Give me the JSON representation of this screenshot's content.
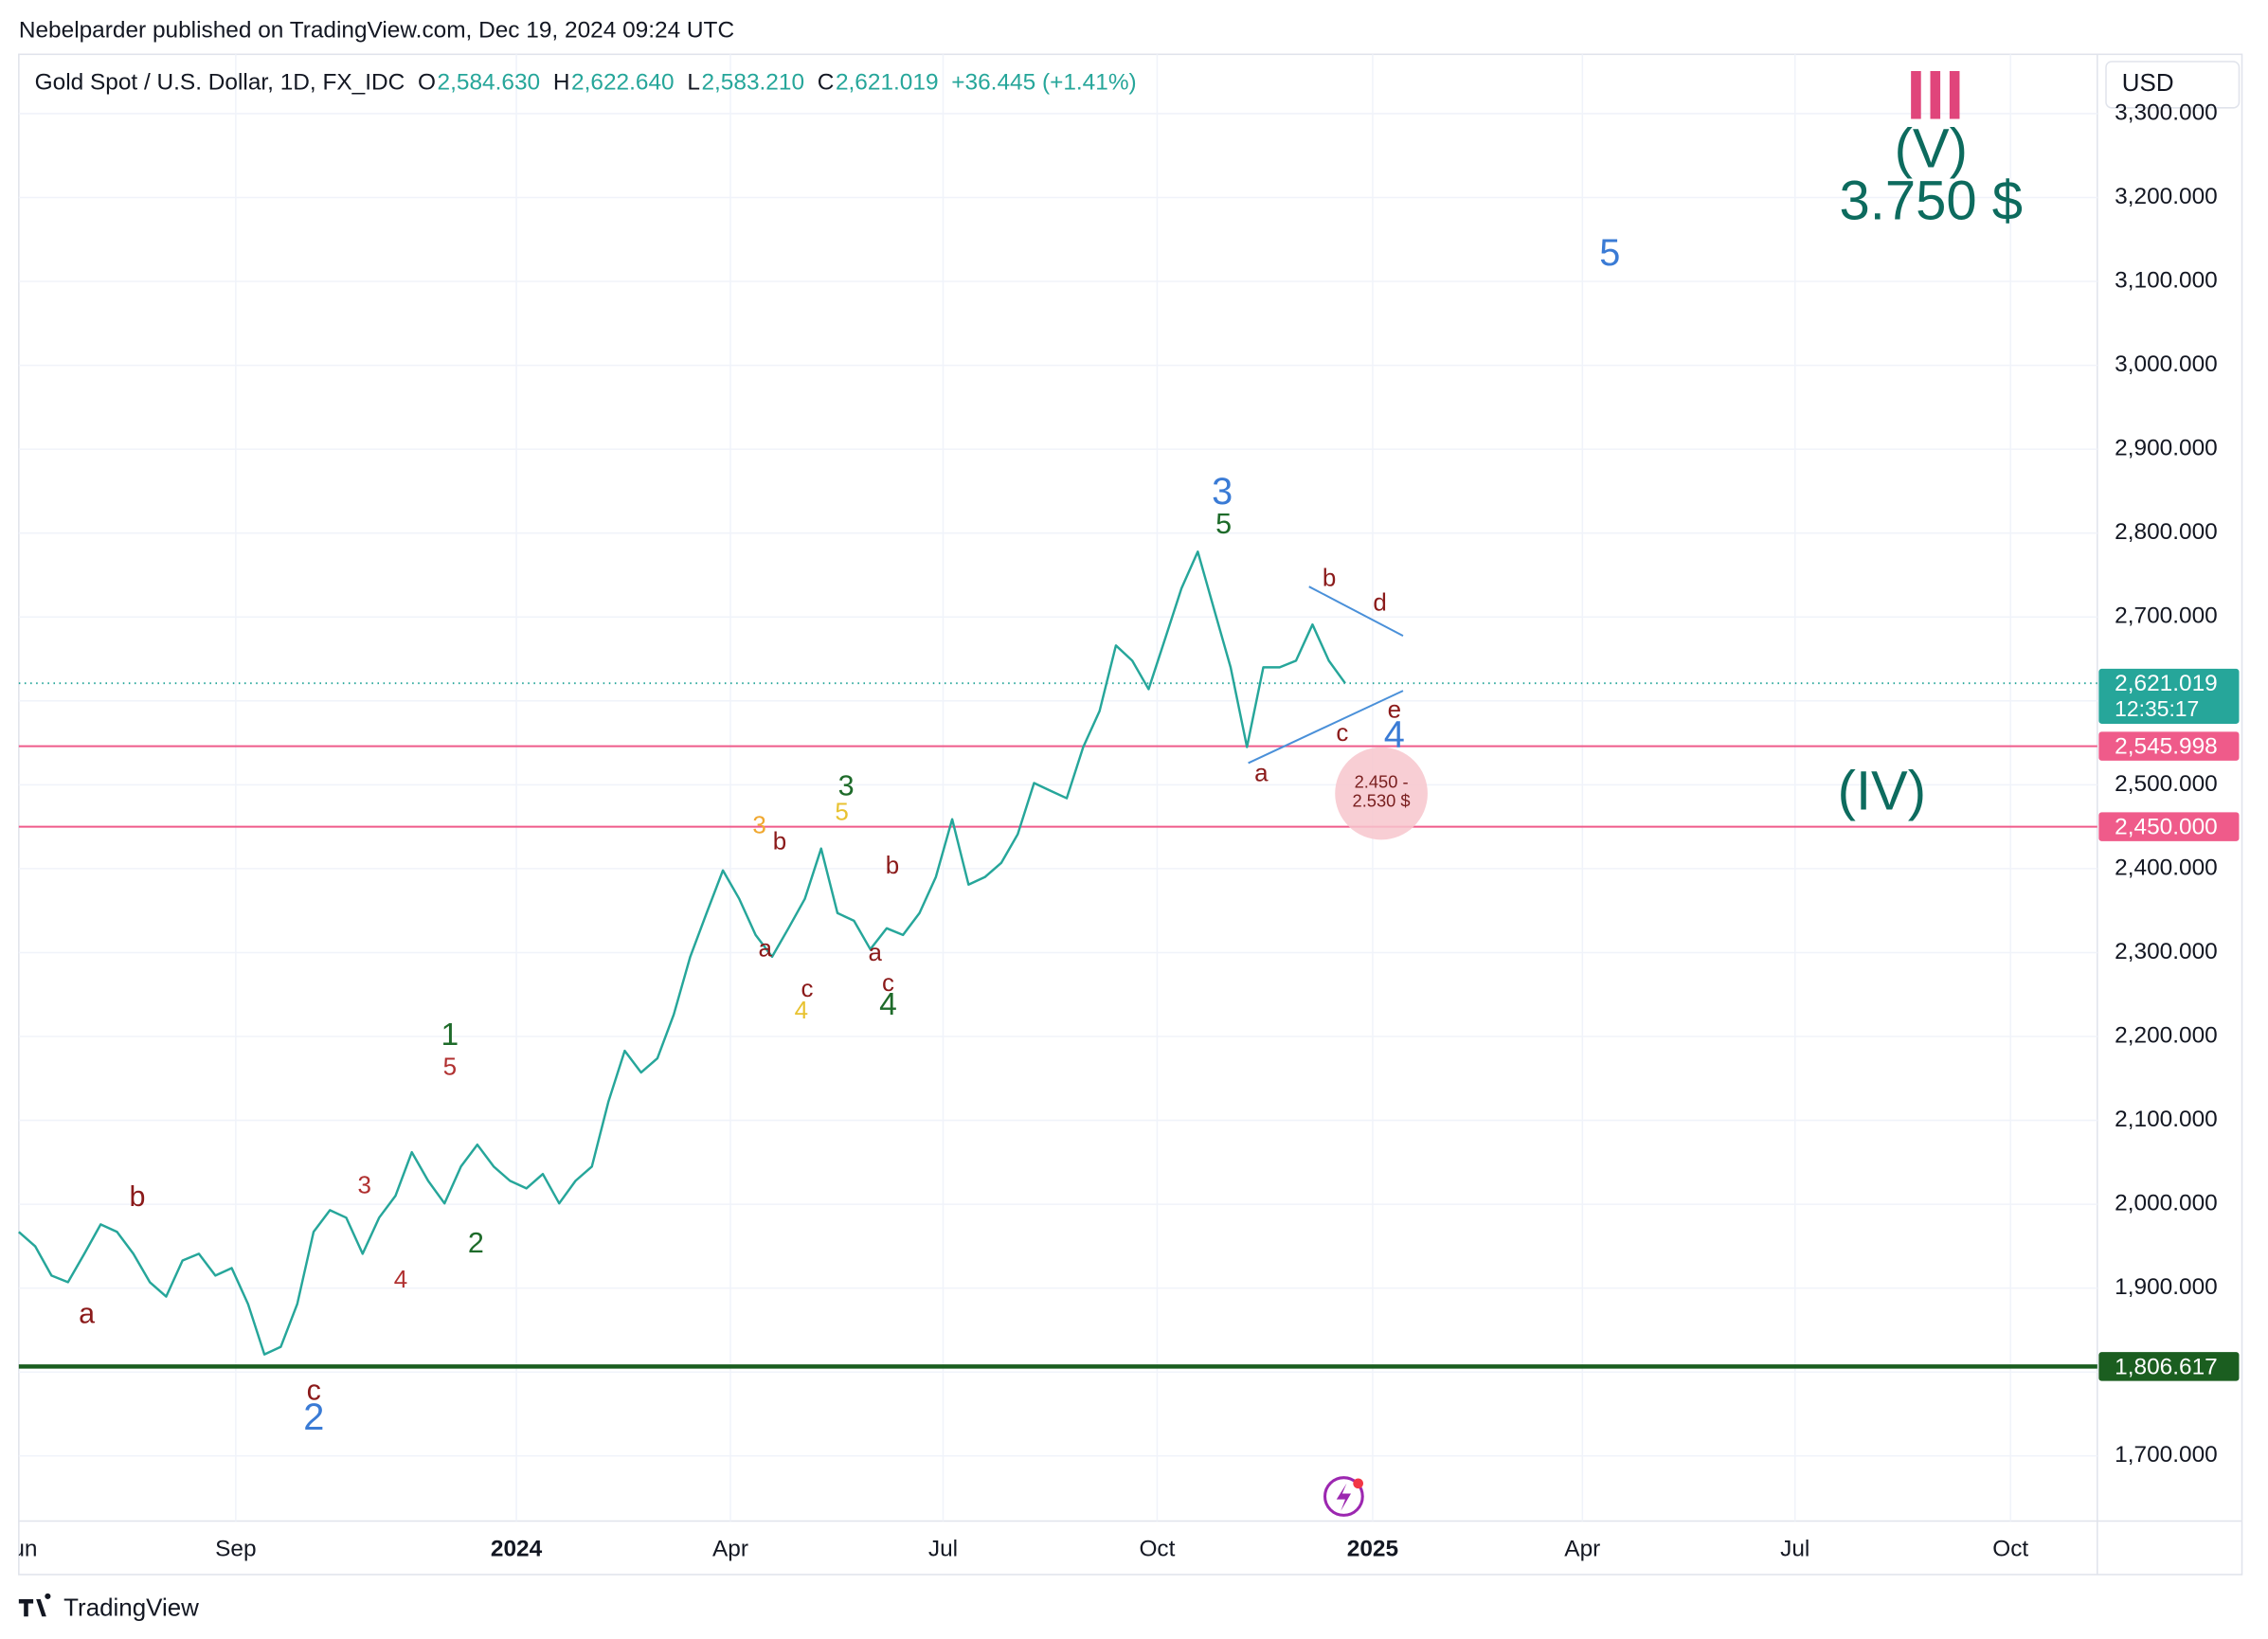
{
  "header": {
    "publisher": "Nebelparder published on TradingView.com, Dec 19, 2024 09:24 UTC",
    "logo": "TradingView"
  },
  "chart_data": {
    "type": "line",
    "title": "Gold Spot / U.S. Dollar, 1D, FX_IDC",
    "ohlc": {
      "labels": [
        "O",
        "H",
        "L",
        "C"
      ],
      "value_labels": [
        "2,584.630",
        "2,622.640",
        "2,583.210",
        "2,621.019"
      ]
    },
    "change_label": "+36.445 (+1.41%)",
    "currency": "USD",
    "color": "#26a69a",
    "values": [
      1967,
      1950,
      1915,
      1907,
      1941,
      1976,
      1967,
      1941,
      1907,
      1890,
      1933,
      1941,
      1915,
      1924,
      1881,
      1821,
      1830,
      1881,
      1967,
      1993,
      1984,
      1941,
      1984,
      2010,
      2062,
      2028,
      2001,
      2045,
      2071,
      2045,
      2028,
      2019,
      2036,
      2001,
      2028,
      2045,
      2122,
      2183,
      2157,
      2174,
      2226,
      2295,
      2347,
      2398,
      2364,
      2321,
      2295,
      2329,
      2364,
      2424,
      2347,
      2338,
      2304,
      2329,
      2321,
      2347,
      2390,
      2459,
      2381,
      2390,
      2407,
      2441,
      2502,
      2493,
      2484,
      2545,
      2588,
      2666,
      2648,
      2614,
      2674,
      2734,
      2778,
      2709,
      2640,
      2545,
      2640,
      2640,
      2648,
      2691,
      2648,
      2621.019
    ],
    "ylim": [
      1622.4,
      3370.7
    ],
    "yticks": [
      {
        "value": 1700,
        "label": "1,700.000"
      },
      {
        "value": 1800,
        "label": "1,800.000"
      },
      {
        "value": 1900,
        "label": "1,900.000"
      },
      {
        "value": 2000,
        "label": "2,000.000"
      },
      {
        "value": 2100,
        "label": "2,100.000"
      },
      {
        "value": 2200,
        "label": "2,200.000"
      },
      {
        "value": 2300,
        "label": "2,300.000"
      },
      {
        "value": 2400,
        "label": "2,400.000"
      },
      {
        "value": 2500,
        "label": "2,500.000"
      },
      {
        "value": 2600,
        "label": "2,600.000"
      },
      {
        "value": 2700,
        "label": "2,700.000"
      },
      {
        "value": 2800,
        "label": "2,800.000"
      },
      {
        "value": 2900,
        "label": "2,900.000"
      },
      {
        "value": 3000,
        "label": "3,000.000"
      },
      {
        "value": 3100,
        "label": "3,100.000"
      },
      {
        "value": 3200,
        "label": "3,200.000"
      },
      {
        "value": 3300,
        "label": "3,300.000"
      }
    ],
    "xticks": [
      "Jun",
      "Sep",
      "2024",
      "Apr",
      "Jul",
      "Oct",
      "2025",
      "Apr",
      "Jul",
      "Oct"
    ],
    "grid": true,
    "last_price": {
      "value": 2621.019,
      "label": "2,621.019",
      "countdown": "12:35:17",
      "color": "#26a69a"
    },
    "levels": [
      {
        "value": 2545.998,
        "label": "2,545.998",
        "color": "#ef5b8a"
      },
      {
        "value": 2450,
        "label": "2,450.000",
        "color": "#ef5b8a"
      },
      {
        "value": 1806.617,
        "label": "1,806.617",
        "color": "#1b5e20"
      }
    ],
    "zone_label": [
      "2.450 -",
      "2.530 $"
    ],
    "annotations": [
      {
        "text": "III",
        "color": "#e0457b"
      },
      {
        "text": "(V)",
        "color": "#0d6b5e"
      },
      {
        "text": "3.750 $",
        "color": "#0d6b5e"
      },
      {
        "text": "5",
        "color": "#3a7bd5"
      },
      {
        "text": "3",
        "color": "#3a7bd5"
      },
      {
        "text": "5",
        "color": "#1e6b2a"
      },
      {
        "text": "b",
        "color": "#8b1a1a"
      },
      {
        "text": "d",
        "color": "#8b1a1a"
      },
      {
        "text": "e",
        "color": "#8b1a1a"
      },
      {
        "text": "c",
        "color": "#8b1a1a"
      },
      {
        "text": "4",
        "color": "#3a7bd5"
      },
      {
        "text": "a",
        "color": "#8b1a1a"
      },
      {
        "text": "(IV)",
        "color": "#0d6b5e"
      },
      {
        "text": "3",
        "color": "#1e6b2a"
      },
      {
        "text": "3",
        "color": "#f0a830"
      },
      {
        "text": "b",
        "color": "#8b1a1a"
      },
      {
        "text": "5",
        "color": "#e8c230"
      },
      {
        "text": "b",
        "color": "#8b1a1a"
      },
      {
        "text": "a",
        "color": "#8b1a1a"
      },
      {
        "text": "a",
        "color": "#8b1a1a"
      },
      {
        "text": "c",
        "color": "#8b1a1a"
      },
      {
        "text": "c",
        "color": "#8b1a1a"
      },
      {
        "text": "4",
        "color": "#e8c230"
      },
      {
        "text": "4",
        "color": "#1e6b2a"
      },
      {
        "text": "1",
        "color": "#1e6b2a"
      },
      {
        "text": "5",
        "color": "#b03030"
      },
      {
        "text": "3",
        "color": "#b03030"
      },
      {
        "text": "b",
        "color": "#8b1a1a"
      },
      {
        "text": "2",
        "color": "#1e6b2a"
      },
      {
        "text": "4",
        "color": "#b03030"
      },
      {
        "text": "a",
        "color": "#8b1a1a"
      },
      {
        "text": "c",
        "color": "#8b1a1a"
      },
      {
        "text": "2",
        "color": "#3a7bd5"
      }
    ]
  }
}
